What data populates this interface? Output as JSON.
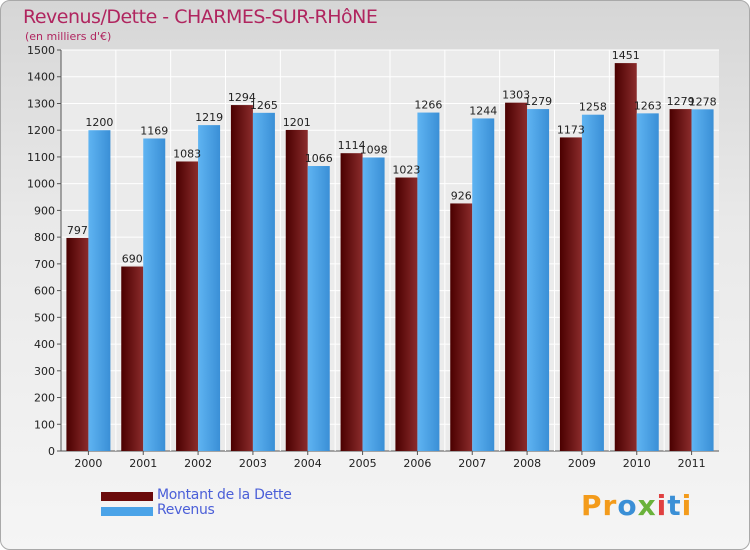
{
  "chart_data": {
    "type": "bar",
    "title": "Revenus/Dette - CHARMES-SUR-RHôNE",
    "subtitle": "(en milliers d'€)",
    "categories": [
      "2000",
      "2001",
      "2002",
      "2003",
      "2004",
      "2005",
      "2006",
      "2007",
      "2008",
      "2009",
      "2010",
      "2011"
    ],
    "series": [
      {
        "name": "Montant de la Dette",
        "color": "#6b0a0a",
        "values": [
          797,
          690,
          1083,
          1294,
          1201,
          1114,
          1023,
          926,
          1303,
          1173,
          1451,
          1279
        ]
      },
      {
        "name": "Revenus",
        "color": "#4aa3e8",
        "values": [
          1200,
          1169,
          1219,
          1265,
          1066,
          1098,
          1266,
          1244,
          1279,
          1258,
          1263,
          1278
        ]
      }
    ],
    "ylim": [
      0,
      1500
    ],
    "yticks": [
      0,
      100,
      200,
      300,
      400,
      500,
      600,
      700,
      800,
      900,
      1000,
      1100,
      1200,
      1300,
      1400,
      1500
    ],
    "grid": true,
    "legend_position": "bottom-left"
  },
  "brand": "Proxiti"
}
